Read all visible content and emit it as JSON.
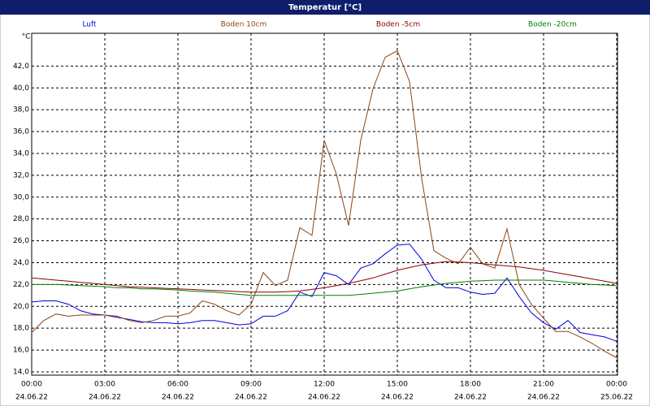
{
  "chart_data": {
    "type": "line",
    "title": "Temperatur [°C]",
    "y_label": "°C",
    "x": [
      0,
      0.5,
      1,
      1.5,
      2,
      2.5,
      3,
      3.5,
      4,
      4.5,
      5,
      5.5,
      6,
      6.5,
      7,
      7.5,
      8,
      8.5,
      9,
      9.5,
      10,
      10.5,
      11,
      11.5,
      12,
      12.5,
      13,
      13.5,
      14,
      14.5,
      15,
      15.5,
      16,
      16.5,
      17,
      17.5,
      18,
      18.5,
      19,
      19.5,
      20,
      20.5,
      21,
      21.5,
      22,
      22.5,
      23,
      23.5,
      24
    ],
    "xlim": [
      0,
      24
    ],
    "xticks": [
      {
        "value": 0,
        "label": "00:00"
      },
      {
        "value": 3,
        "label": "03:00"
      },
      {
        "value": 6,
        "label": "06:00"
      },
      {
        "value": 9,
        "label": "09:00"
      },
      {
        "value": 12,
        "label": "12:00"
      },
      {
        "value": 15,
        "label": "15:00"
      },
      {
        "value": 18,
        "label": "18:00"
      },
      {
        "value": 21,
        "label": "21:00"
      },
      {
        "value": 24,
        "label": "00:00"
      }
    ],
    "xtick_dates": [
      "24.06.22",
      "24.06.22",
      "24.06.22",
      "24.06.22",
      "24.06.22",
      "24.06.22",
      "24.06.22",
      "24.06.22",
      "25.06.22"
    ],
    "ylim": [
      13.7,
      45
    ],
    "yticks": [
      {
        "value": 14,
        "label": "14,0"
      },
      {
        "value": 16,
        "label": "16,0"
      },
      {
        "value": 18,
        "label": "18,0"
      },
      {
        "value": 20,
        "label": "20,0"
      },
      {
        "value": 22,
        "label": "22,0"
      },
      {
        "value": 24,
        "label": "24,0"
      },
      {
        "value": 26,
        "label": "26,0"
      },
      {
        "value": 28,
        "label": "28,0"
      },
      {
        "value": 30,
        "label": "30,0"
      },
      {
        "value": 32,
        "label": "32,0"
      },
      {
        "value": 34,
        "label": "34,0"
      },
      {
        "value": 36,
        "label": "36,0"
      },
      {
        "value": 38,
        "label": "38,0"
      },
      {
        "value": 40,
        "label": "40,0"
      },
      {
        "value": 42,
        "label": "42,0"
      }
    ],
    "grid": true,
    "series": [
      {
        "name": "Luft",
        "color": "#0000dd",
        "values": [
          20.4,
          20.5,
          20.5,
          20.2,
          19.6,
          19.3,
          19.2,
          19.0,
          18.8,
          18.6,
          18.5,
          18.5,
          18.4,
          18.5,
          18.7,
          18.7,
          18.5,
          18.3,
          18.4,
          19.1,
          19.1,
          19.6,
          21.3,
          20.9,
          23.1,
          22.8,
          22.0,
          23.5,
          23.9,
          24.8,
          25.6,
          25.7,
          24.3,
          22.4,
          21.7,
          21.7,
          21.3,
          21.1,
          21.2,
          22.6,
          20.9,
          19.4,
          18.5,
          17.9,
          18.7,
          17.6,
          17.4,
          17.2,
          16.8
        ]
      },
      {
        "name": "Boden 10cm",
        "color": "#8b4513",
        "values": [
          17.6,
          18.7,
          19.3,
          19.1,
          19.2,
          19.2,
          19.2,
          19.1,
          18.7,
          18.5,
          18.7,
          19.1,
          19.1,
          19.4,
          20.5,
          20.2,
          19.6,
          19.2,
          20.2,
          23.1,
          21.9,
          22.4,
          27.2,
          26.5,
          35.2,
          32.1,
          27.4,
          35.2,
          39.9,
          42.8,
          43.4,
          40.6,
          31.7,
          25.1,
          24.4,
          23.9,
          25.4,
          23.9,
          23.5,
          27.1,
          22.0,
          20.2,
          18.9,
          17.7,
          17.7,
          17.2,
          16.6,
          15.9,
          15.3
        ]
      },
      {
        "name": "Boden -5cm",
        "color": "#8b0000",
        "values": [
          22.6,
          22.5,
          22.4,
          22.3,
          22.2,
          22.1,
          22.0,
          21.9,
          21.8,
          21.75,
          21.7,
          21.65,
          21.6,
          21.55,
          21.5,
          21.45,
          21.4,
          21.35,
          21.3,
          21.3,
          21.3,
          21.35,
          21.4,
          21.55,
          21.7,
          21.9,
          22.1,
          22.35,
          22.6,
          22.95,
          23.3,
          23.55,
          23.8,
          23.95,
          24.1,
          24.05,
          24.0,
          23.9,
          23.8,
          23.7,
          23.6,
          23.45,
          23.3,
          23.1,
          22.9,
          22.7,
          22.5,
          22.3,
          22.1
        ]
      },
      {
        "name": "Boden -20cm",
        "color": "#008000",
        "values": [
          22.0,
          22.0,
          22.0,
          21.95,
          21.9,
          21.85,
          21.8,
          21.7,
          21.7,
          21.6,
          21.6,
          21.55,
          21.5,
          21.4,
          21.35,
          21.3,
          21.2,
          21.1,
          21.0,
          21.0,
          21.0,
          21.0,
          21.0,
          21.0,
          21.0,
          21.0,
          21.0,
          21.1,
          21.2,
          21.3,
          21.4,
          21.6,
          21.8,
          21.95,
          22.1,
          22.2,
          22.3,
          22.35,
          22.4,
          22.4,
          22.4,
          22.4,
          22.4,
          22.3,
          22.2,
          22.1,
          22.0,
          21.95,
          21.9
        ]
      }
    ]
  }
}
